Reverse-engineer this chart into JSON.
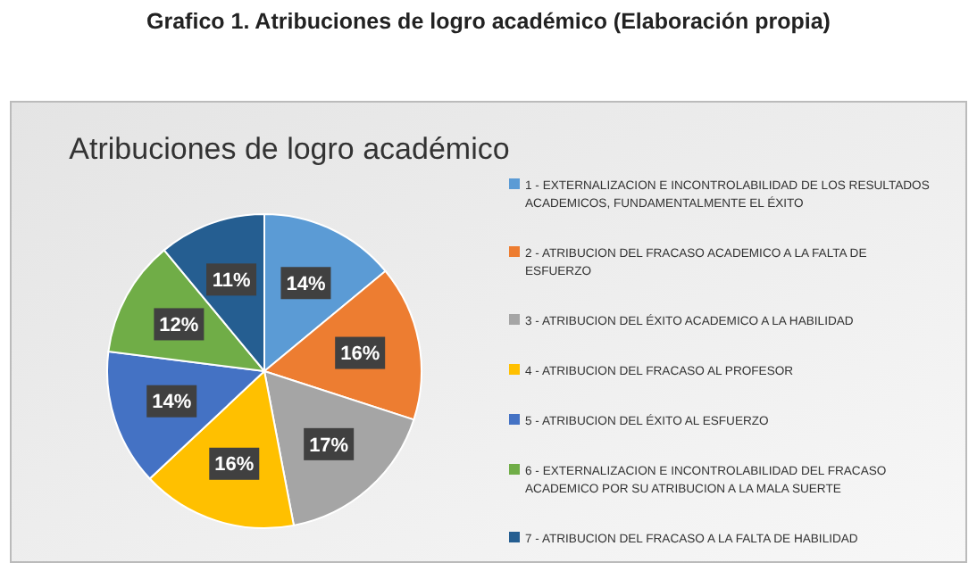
{
  "chart_data": {
    "type": "pie",
    "title": "Atribuciones de logro académico",
    "annotations": [
      "Grafico 1. Atribuciones de logro académico (Elaboración propia)"
    ],
    "categories": [
      "1 - EXTERNALIZACION E INCONTROLABILIDAD DE LOS RESULTADOS ACADEMICOS, FUNDAMENTALMENTE EL ÉXITO",
      "2 - ATRIBUCION DEL FRACASO ACADEMICO A LA FALTA DE ESFUERZO",
      "3 - ATRIBUCION DEL ÉXITO ACADEMICO A LA HABILIDAD",
      "4 - ATRIBUCION DEL FRACASO AL PROFESOR",
      "5 - ATRIBUCION DEL ÉXITO AL ESFUERZO",
      "6 - EXTERNALIZACION E INCONTROLABILIDAD DEL FRACASO ACADEMICO POR SU ATRIBUCION A LA MALA SUERTE",
      "7 - ATRIBUCION DEL FRACASO A LA FALTA DE HABILIDAD"
    ],
    "values": [
      14,
      16,
      17,
      16,
      14,
      12,
      11
    ],
    "value_labels": [
      "14%",
      "16%",
      "17%",
      "16%",
      "14%",
      "12%",
      "11%"
    ],
    "colors": [
      "#5b9bd5",
      "#ed7d31",
      "#a5a5a5",
      "#ffc000",
      "#4472c4",
      "#70ad47",
      "#255e91"
    ],
    "legend": "right"
  }
}
